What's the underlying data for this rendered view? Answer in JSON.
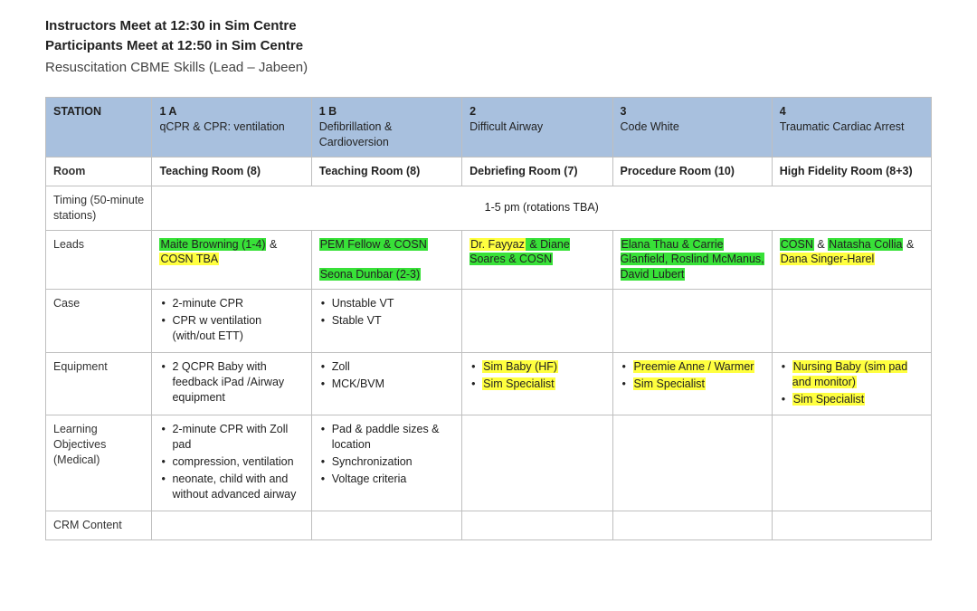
{
  "header": {
    "line1": "Instructors Meet at 12:30 in Sim Centre",
    "line2": "Participants Meet at 12:50 in Sim Centre",
    "line3": "Resuscitation CBME Skills (Lead – Jabeen)"
  },
  "colors": {
    "header_bg": "#a8c0de",
    "border": "#bfbfbf",
    "highlight_yellow": "#ffff3f",
    "highlight_green": "#38e138"
  },
  "columns": [
    {
      "title": "STATION",
      "sub": ""
    },
    {
      "title": "1 A",
      "sub": "qCPR & CPR: ventilation"
    },
    {
      "title": "1 B",
      "sub": "Defibrillation & Cardioversion"
    },
    {
      "title": "2",
      "sub": "Difficult Airway"
    },
    {
      "title": "3",
      "sub": "Code White"
    },
    {
      "title": "4",
      "sub": "Traumatic Cardiac Arrest"
    }
  ],
  "rows": {
    "room": {
      "label": "Room",
      "cells": [
        "Teaching Room (8)",
        "Teaching Room (8)",
        "Debriefing Room (7)",
        "Procedure Room (10)",
        "High Fidelity Room (8+3)"
      ]
    },
    "timing": {
      "label": "Timing (50-minute stations)",
      "merged": "1-5 pm (rotations TBA)"
    },
    "leads": {
      "label": "Leads",
      "cells": [
        [
          {
            "t": "Maite Browning (1-4)",
            "c": "g"
          },
          {
            "t": " & ",
            "c": ""
          },
          {
            "t": "COSN TBA",
            "c": "y"
          }
        ],
        [
          {
            "t": "PEM Fellow & COSN",
            "c": "g"
          },
          {
            "t": "\n\n",
            "c": ""
          },
          {
            "t": "Seona Dunbar (2-3)",
            "c": "g"
          }
        ],
        [
          {
            "t": "Dr. Fayyaz",
            "c": "y"
          },
          {
            "t": " & Diane Soares & COSN",
            "c": "g"
          }
        ],
        [
          {
            "t": "Elana Thau & Carrie Glanfield, Roslind McManus, David Lubert",
            "c": "g"
          }
        ],
        [
          {
            "t": "COSN",
            "c": "g"
          },
          {
            "t": " & ",
            "c": ""
          },
          {
            "t": "Natasha Collia",
            "c": "g"
          },
          {
            "t": " & ",
            "c": ""
          },
          {
            "t": "Dana Singer-Harel",
            "c": "y"
          }
        ]
      ]
    },
    "case": {
      "label": "Case",
      "cells": [
        [
          {
            "t": "2-minute CPR"
          },
          {
            "t": "CPR w ventilation (with/out ETT)"
          }
        ],
        [
          {
            "t": "Unstable VT"
          },
          {
            "t": "Stable VT"
          }
        ],
        [],
        [],
        []
      ]
    },
    "equipment": {
      "label": "Equipment",
      "cells": [
        [
          {
            "t": "2 QCPR Baby with feedback iPad /Airway equipment"
          }
        ],
        [
          {
            "t": "Zoll"
          },
          {
            "t": "MCK/BVM"
          }
        ],
        [
          {
            "t": "Sim Baby (HF)",
            "c": "y"
          },
          {
            "t": "Sim Specialist",
            "c": "y"
          }
        ],
        [
          {
            "t": "Preemie Anne / Warmer",
            "c": "y"
          },
          {
            "t": "Sim Specialist",
            "c": "y"
          }
        ],
        [
          {
            "t": "Nursing Baby (sim pad and monitor)",
            "c": "y"
          },
          {
            "t": "Sim Specialist",
            "c": "y"
          }
        ]
      ]
    },
    "learning": {
      "label": "Learning Objectives (Medical)",
      "cells": [
        [
          {
            "t": "2-minute CPR with Zoll pad"
          },
          {
            "t": "compression, ventilation"
          },
          {
            "t": "neonate, child with and without advanced airway"
          }
        ],
        [
          {
            "t": "Pad & paddle sizes & location"
          },
          {
            "t": "Synchronization"
          },
          {
            "t": "Voltage criteria"
          }
        ],
        [],
        [],
        []
      ]
    },
    "crm": {
      "label": "CRM Content",
      "cells": [
        [],
        [],
        [],
        [],
        []
      ]
    }
  }
}
